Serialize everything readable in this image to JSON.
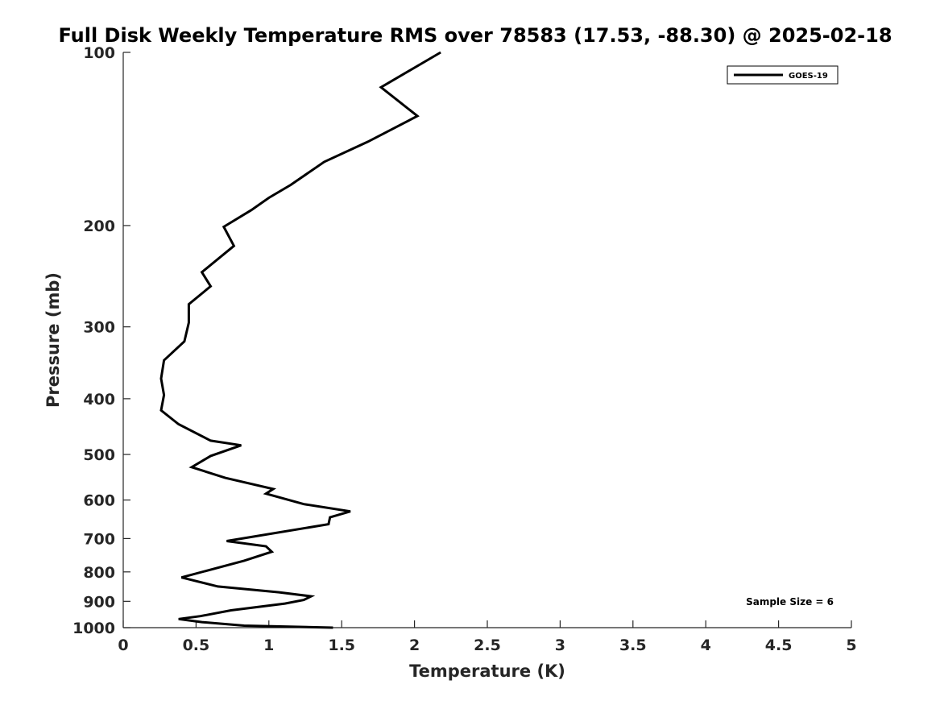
{
  "chart_data": {
    "type": "line",
    "title": "Full Disk Weekly Temperature RMS over 78583 (17.53, -88.30) @ 2025-02-18",
    "xlabel": "Temperature (K)",
    "ylabel": "Pressure (mb)",
    "xlim": [
      0,
      5
    ],
    "ylim": [
      100,
      1000
    ],
    "y_scale": "log",
    "y_reversed": true,
    "grid": false,
    "legend_position": "top-right",
    "x_ticks": [
      "0",
      "0.5",
      "1",
      "1.5",
      "2",
      "2.5",
      "3",
      "3.5",
      "4",
      "4.5",
      "5"
    ],
    "y_ticks": [
      "100",
      "200",
      "300",
      "400",
      "500",
      "600",
      "700",
      "800",
      "900",
      "1000"
    ],
    "series": [
      {
        "name": "GOES-19",
        "color": "#000000",
        "points": [
          [
            2.18,
            100
          ],
          [
            1.77,
            115
          ],
          [
            2.02,
            129
          ],
          [
            1.68,
            143
          ],
          [
            1.38,
            155
          ],
          [
            1.15,
            170
          ],
          [
            1.0,
            179
          ],
          [
            0.88,
            188
          ],
          [
            0.69,
            201
          ],
          [
            0.76,
            217
          ],
          [
            0.54,
            241
          ],
          [
            0.6,
            255
          ],
          [
            0.45,
            274
          ],
          [
            0.45,
            295
          ],
          [
            0.42,
            318
          ],
          [
            0.28,
            343
          ],
          [
            0.26,
            369
          ],
          [
            0.28,
            394
          ],
          [
            0.26,
            419
          ],
          [
            0.38,
            443
          ],
          [
            0.6,
            473
          ],
          [
            0.81,
            482
          ],
          [
            0.6,
            503
          ],
          [
            0.47,
            526
          ],
          [
            0.7,
            549
          ],
          [
            1.03,
            574
          ],
          [
            0.98,
            585
          ],
          [
            1.24,
            610
          ],
          [
            1.56,
            628
          ],
          [
            1.42,
            643
          ],
          [
            1.41,
            661
          ],
          [
            0.71,
            707
          ],
          [
            0.98,
            722
          ],
          [
            1.02,
            738
          ],
          [
            0.83,
            765
          ],
          [
            0.4,
            818
          ],
          [
            0.65,
            848
          ],
          [
            1.07,
            868
          ],
          [
            1.29,
            882
          ],
          [
            1.24,
            895
          ],
          [
            1.11,
            908
          ],
          [
            0.74,
            933
          ],
          [
            0.53,
            955
          ],
          [
            0.38,
            966
          ],
          [
            0.54,
            978
          ],
          [
            0.83,
            992
          ],
          [
            1.44,
            1000
          ]
        ]
      }
    ],
    "annotations": [
      "Sample Size = 6"
    ]
  }
}
